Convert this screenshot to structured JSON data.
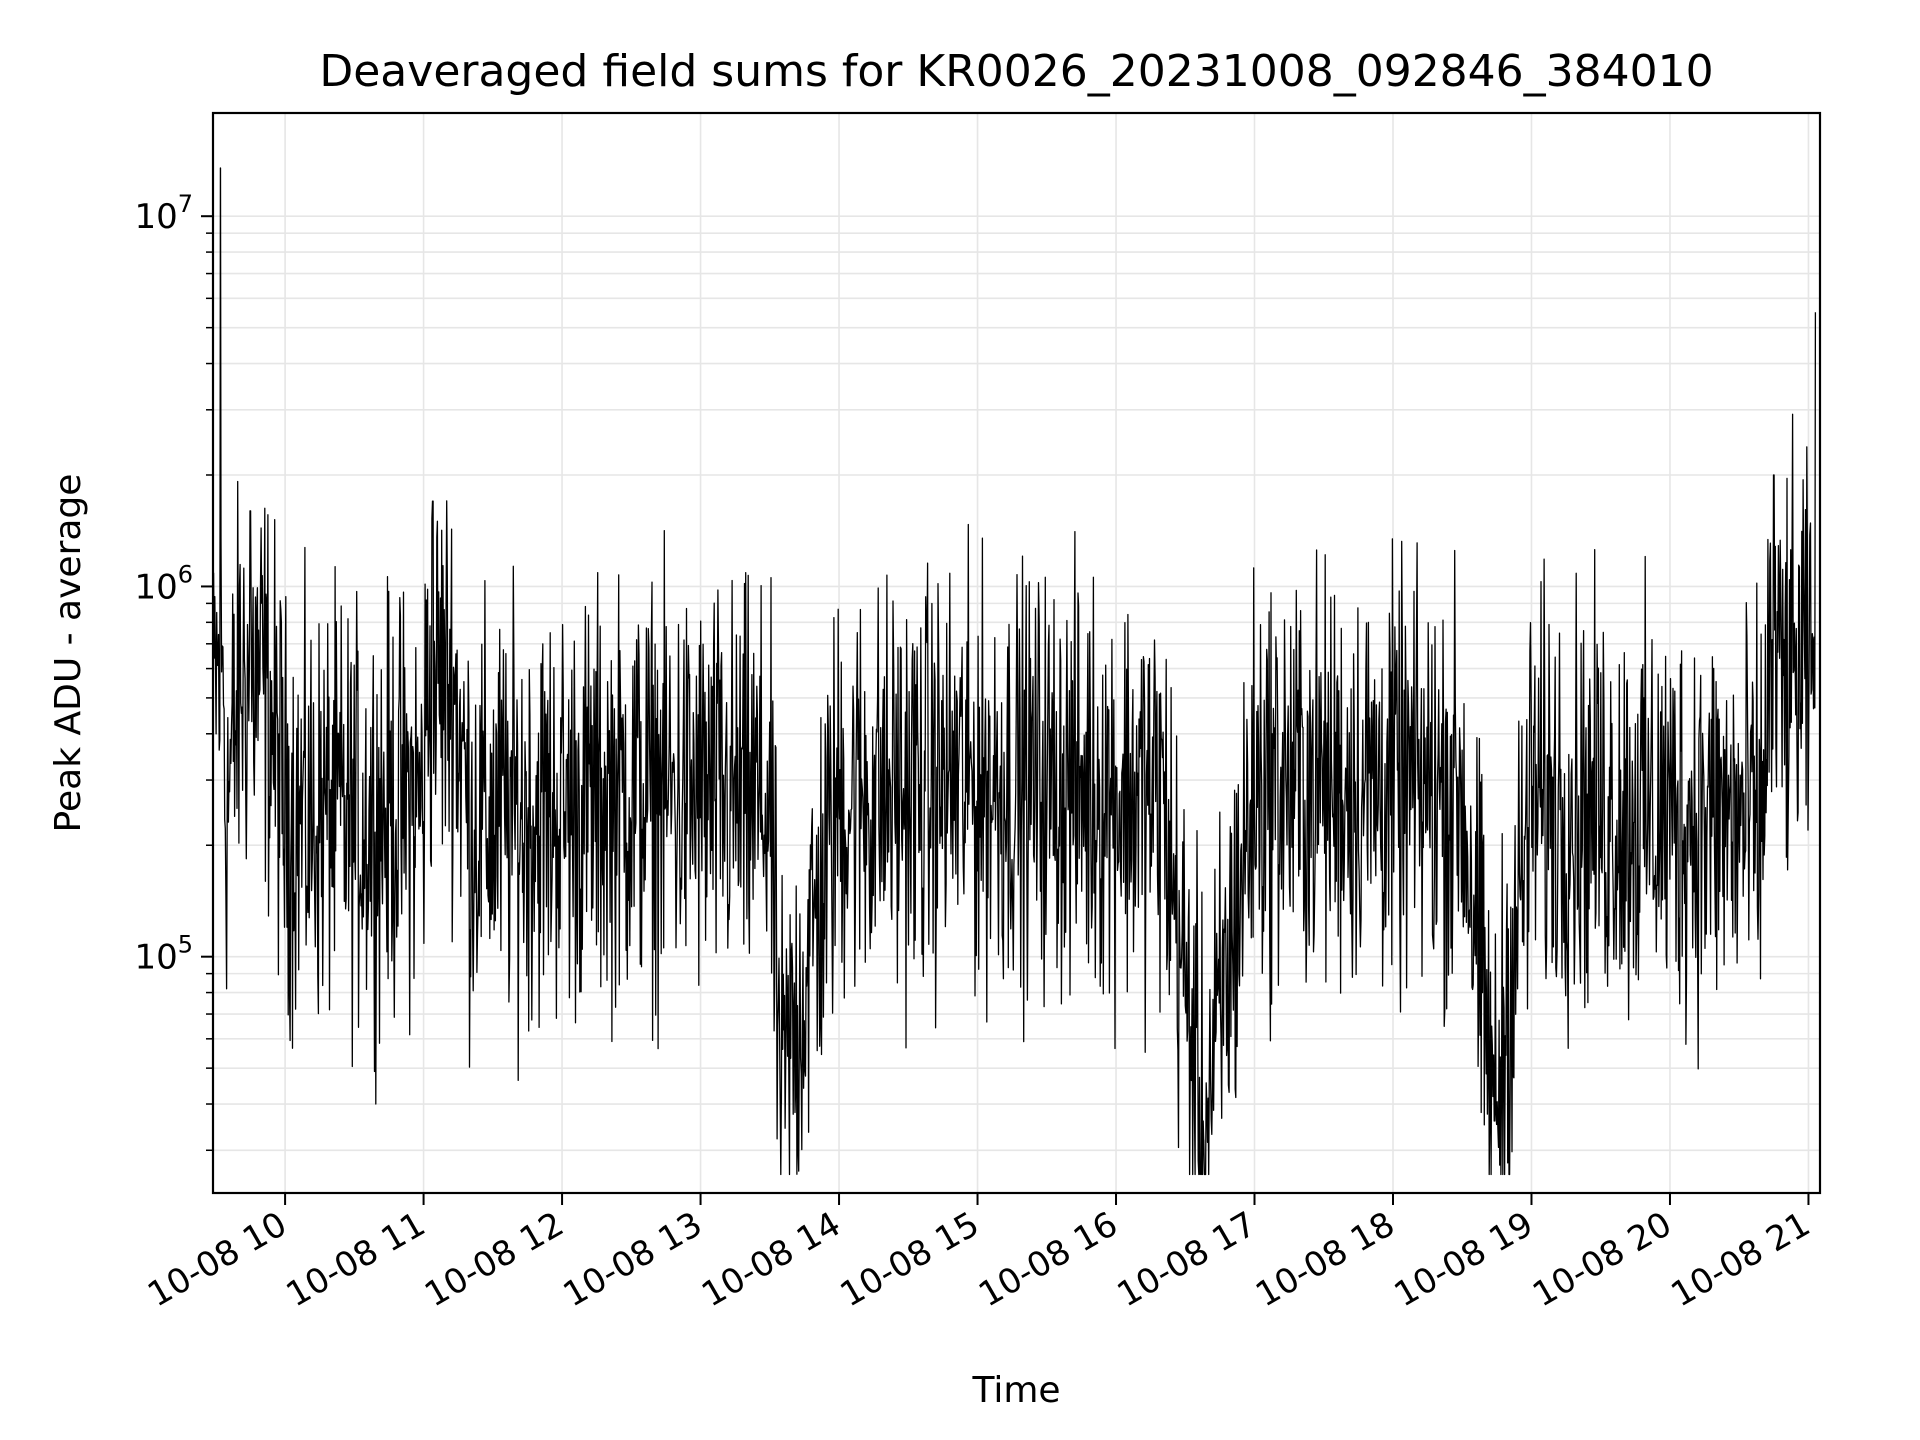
{
  "chart_data": {
    "type": "line",
    "title": "Deaveraged field sums for KR0026_20231008_092846_384010",
    "xlabel": "Time",
    "ylabel": "Peak ADU - average",
    "yscale": "log",
    "ylim": [
      23000,
      19000000
    ],
    "xlim": [
      "2023-10-08 09:28:46",
      "2023-10-08 21:05:00"
    ],
    "x_ticks": [
      {
        "value": "2023-10-08 10:00",
        "label": "10-08 10"
      },
      {
        "value": "2023-10-08 11:00",
        "label": "10-08 11"
      },
      {
        "value": "2023-10-08 12:00",
        "label": "10-08 12"
      },
      {
        "value": "2023-10-08 13:00",
        "label": "10-08 13"
      },
      {
        "value": "2023-10-08 14:00",
        "label": "10-08 14"
      },
      {
        "value": "2023-10-08 15:00",
        "label": "10-08 15"
      },
      {
        "value": "2023-10-08 16:00",
        "label": "10-08 16"
      },
      {
        "value": "2023-10-08 17:00",
        "label": "10-08 17"
      },
      {
        "value": "2023-10-08 18:00",
        "label": "10-08 18"
      },
      {
        "value": "2023-10-08 19:00",
        "label": "10-08 19"
      },
      {
        "value": "2023-10-08 20:00",
        "label": "10-08 20"
      },
      {
        "value": "2023-10-08 21:00",
        "label": "10-08 21"
      }
    ],
    "y_ticks": [
      {
        "value": 100000,
        "base": "10",
        "exp": "5"
      },
      {
        "value": 1000000,
        "base": "10",
        "exp": "6"
      },
      {
        "value": 10000000,
        "base": "10",
        "exp": "7"
      }
    ],
    "grid": true,
    "minor_grid": true,
    "line_color": "#000000",
    "grid_color": "#e6e6e6",
    "series": [
      {
        "x": [
          "2023-10-08 09:28:46",
          "2023-10-08 09:30",
          "2023-10-08 09:32",
          "2023-10-08 09:34",
          "2023-10-08 09:36",
          "2023-10-08 09:40",
          "2023-10-08 09:45",
          "2023-10-08 09:50",
          "2023-10-08 09:55",
          "2023-10-08 10:00",
          "2023-10-08 10:10",
          "2023-10-08 10:20",
          "2023-10-08 10:30",
          "2023-10-08 10:45",
          "2023-10-08 11:00",
          "2023-10-08 11:04",
          "2023-10-08 11:20",
          "2023-10-08 11:40",
          "2023-10-08 12:00",
          "2023-10-08 12:30",
          "2023-10-08 13:00",
          "2023-10-08 13:30",
          "2023-10-08 13:35",
          "2023-10-08 14:00",
          "2023-10-08 14:30",
          "2023-10-08 14:52",
          "2023-10-08 15:00",
          "2023-10-08 15:30",
          "2023-10-08 16:00",
          "2023-10-08 16:20",
          "2023-10-08 16:38",
          "2023-10-08 17:00",
          "2023-10-08 17:30",
          "2023-10-08 18:00",
          "2023-10-08 18:30",
          "2023-10-08 18:44",
          "2023-10-08 19:00",
          "2023-10-08 19:30",
          "2023-10-08 20:00",
          "2023-10-08 20:30",
          "2023-10-08 20:40",
          "2023-10-08 20:45",
          "2023-10-08 20:50",
          "2023-10-08 21:00",
          "2023-10-08 21:03"
        ],
        "y": [
          300000,
          800000,
          13500000,
          250000,
          300000,
          500000,
          1600000,
          600000,
          400000,
          250000,
          230000,
          250000,
          230000,
          250000,
          270000,
          1700000,
          230000,
          240000,
          250000,
          280000,
          270000,
          260000,
          40000,
          270000,
          280000,
          300000,
          290000,
          300000,
          280000,
          270000,
          32000,
          290000,
          300000,
          290000,
          280000,
          36000,
          270000,
          250000,
          240000,
          230000,
          220000,
          2000000,
          550000,
          600000,
          5500000
        ]
      }
    ]
  }
}
